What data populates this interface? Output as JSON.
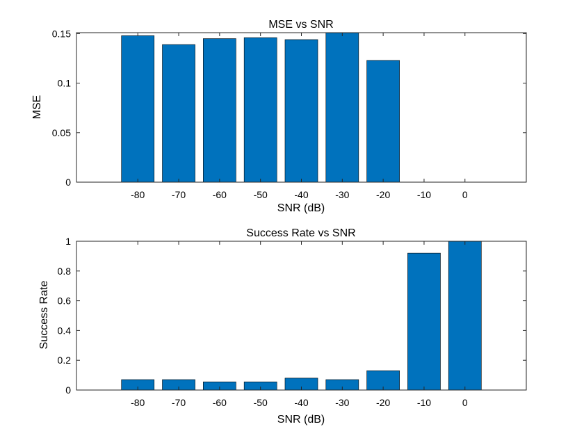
{
  "chart_data": [
    {
      "type": "bar",
      "title": "MSE vs SNR",
      "xlabel": "SNR (dB)",
      "ylabel": "MSE",
      "categories": [
        "-80",
        "-70",
        "-60",
        "-50",
        "-40",
        "-30",
        "-20",
        "-10",
        "0"
      ],
      "x": [
        -80,
        -70,
        -60,
        -50,
        -40,
        -30,
        -20,
        -10,
        0
      ],
      "values": [
        0.148,
        0.139,
        0.145,
        0.146,
        0.144,
        0.151,
        0.123,
        0,
        0
      ],
      "xlim": [
        -95,
        15
      ],
      "ylim": [
        0,
        0.151
      ],
      "yticks": [
        0,
        0.05,
        0.1,
        0.15
      ],
      "ytick_labels": [
        "0",
        "0.05",
        "0.1",
        "0.15"
      ],
      "bar_color": "#0072BD",
      "grid": false
    },
    {
      "type": "bar",
      "title": "Success Rate vs SNR",
      "xlabel": "SNR (dB)",
      "ylabel": "Success Rate",
      "categories": [
        "-80",
        "-70",
        "-60",
        "-50",
        "-40",
        "-30",
        "-20",
        "-10",
        "0"
      ],
      "x": [
        -80,
        -70,
        -60,
        -50,
        -40,
        -30,
        -20,
        -10,
        0
      ],
      "values": [
        0.07,
        0.07,
        0.055,
        0.055,
        0.08,
        0.07,
        0.13,
        0.92,
        1.0
      ],
      "xlim": [
        -95,
        15
      ],
      "ylim": [
        0,
        1
      ],
      "yticks": [
        0,
        0.2,
        0.4,
        0.6,
        0.8,
        1
      ],
      "ytick_labels": [
        "0",
        "0.2",
        "0.4",
        "0.6",
        "0.8",
        "1"
      ],
      "bar_color": "#0072BD",
      "grid": false
    }
  ]
}
